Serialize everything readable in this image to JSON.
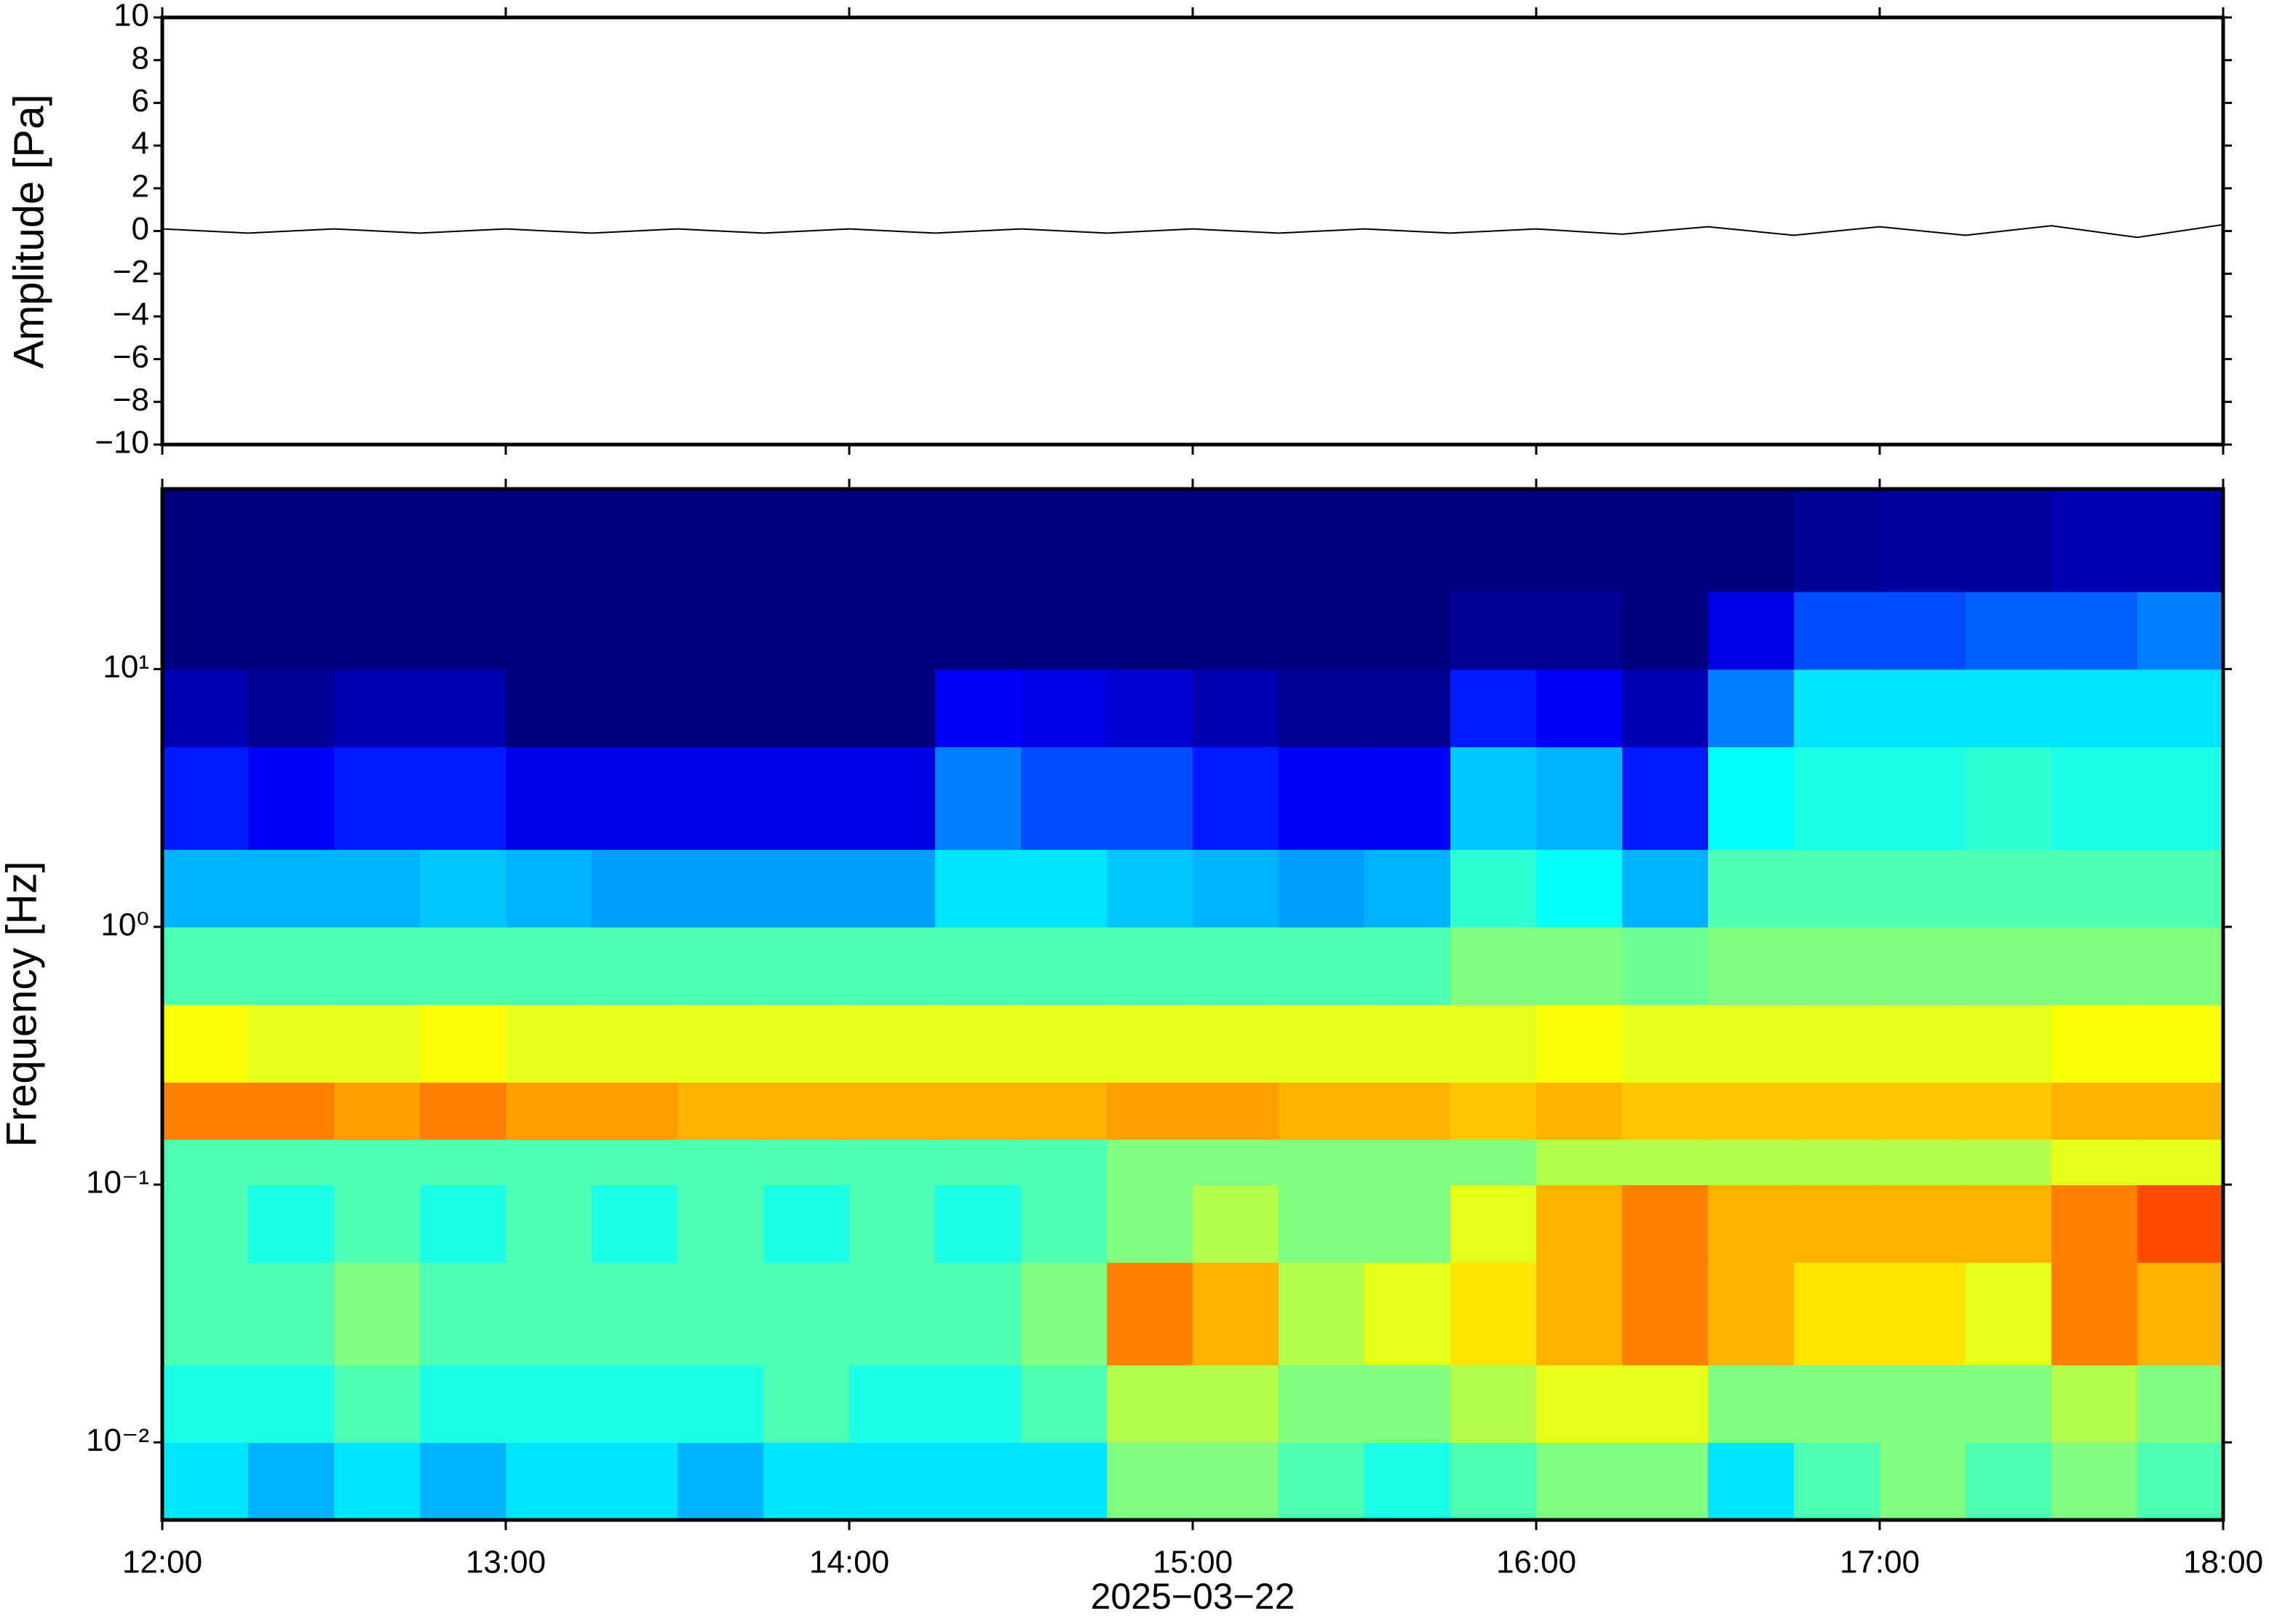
{
  "chart_data": [
    {
      "type": "line",
      "y_label": "Amplitude [Pa]",
      "color": "#000000",
      "x": [
        12,
        12.25,
        12.5,
        12.75,
        13,
        13.25,
        13.5,
        13.75,
        14,
        14.25,
        14.5,
        14.75,
        15,
        15.25,
        15.5,
        15.75,
        16,
        16.25,
        16.5,
        16.75,
        17,
        17.25,
        17.5,
        17.75,
        18
      ],
      "values": [
        0.1,
        -0.1,
        0.1,
        -0.1,
        0.1,
        -0.1,
        0.1,
        -0.1,
        0.1,
        -0.1,
        0.1,
        -0.1,
        0.1,
        -0.1,
        0.1,
        -0.1,
        0.1,
        -0.15,
        0.2,
        -0.2,
        0.2,
        -0.2,
        0.25,
        -0.3,
        0.3
      ],
      "xlim": [
        12,
        18
      ],
      "ylim": [
        -10,
        10
      ],
      "yticks": [
        {
          "value": -10,
          "label": "−10"
        },
        {
          "value": -8,
          "label": "−8"
        },
        {
          "value": -6,
          "label": "−6"
        },
        {
          "value": -4,
          "label": "−4"
        },
        {
          "value": -2,
          "label": "−2"
        },
        0,
        2,
        4,
        6,
        8,
        10
      ]
    },
    {
      "type": "heatmap",
      "y_label": "Frequency [Hz]",
      "x_label": "2025−03−22",
      "colormap": "jet",
      "log_y": true,
      "time_bins": [
        12,
        12.25,
        12.5,
        12.75,
        13,
        13.25,
        13.5,
        13.75,
        14,
        14.25,
        14.5,
        14.75,
        15,
        15.25,
        15.5,
        15.75,
        16,
        16.25,
        16.5,
        16.75,
        17,
        17.25,
        17.5,
        17.75,
        18
      ],
      "freq_bins": [
        0.005,
        0.01,
        0.02,
        0.05,
        0.1,
        0.15,
        0.25,
        0.5,
        1,
        2,
        5,
        10,
        20,
        50
      ],
      "z": [
        [
          0.35,
          0.3,
          0.35,
          0.3,
          0.35,
          0.35,
          0.3,
          0.35,
          0.35,
          0.35,
          0.35,
          0.5,
          0.5,
          0.45,
          0.4,
          0.45,
          0.5,
          0.5,
          0.35,
          0.45,
          0.5,
          0.45,
          0.5,
          0.45
        ],
        [
          0.4,
          0.4,
          0.45,
          0.4,
          0.4,
          0.4,
          0.4,
          0.45,
          0.4,
          0.4,
          0.45,
          0.55,
          0.55,
          0.5,
          0.5,
          0.55,
          0.6,
          0.6,
          0.5,
          0.5,
          0.5,
          0.5,
          0.55,
          0.5
        ],
        [
          0.45,
          0.45,
          0.5,
          0.45,
          0.45,
          0.45,
          0.45,
          0.45,
          0.45,
          0.45,
          0.5,
          0.75,
          0.7,
          0.55,
          0.6,
          0.65,
          0.7,
          0.75,
          0.7,
          0.65,
          0.65,
          0.6,
          0.75,
          0.7
        ],
        [
          0.45,
          0.4,
          0.45,
          0.4,
          0.45,
          0.4,
          0.45,
          0.4,
          0.45,
          0.4,
          0.45,
          0.5,
          0.55,
          0.5,
          0.5,
          0.6,
          0.7,
          0.75,
          0.7,
          0.7,
          0.7,
          0.7,
          0.75,
          0.8
        ],
        [
          0.45,
          0.45,
          0.45,
          0.45,
          0.45,
          0.45,
          0.45,
          0.45,
          0.45,
          0.45,
          0.45,
          0.5,
          0.5,
          0.5,
          0.5,
          0.5,
          0.55,
          0.55,
          0.55,
          0.55,
          0.55,
          0.55,
          0.6,
          0.6
        ],
        [
          0.75,
          0.75,
          0.72,
          0.75,
          0.72,
          0.72,
          0.7,
          0.7,
          0.7,
          0.7,
          0.7,
          0.72,
          0.72,
          0.7,
          0.7,
          0.68,
          0.7,
          0.68,
          0.68,
          0.68,
          0.68,
          0.68,
          0.7,
          0.7
        ],
        [
          0.62,
          0.6,
          0.6,
          0.62,
          0.6,
          0.6,
          0.6,
          0.6,
          0.6,
          0.6,
          0.6,
          0.6,
          0.6,
          0.6,
          0.6,
          0.6,
          0.62,
          0.6,
          0.6,
          0.6,
          0.6,
          0.6,
          0.62,
          0.62
        ],
        [
          0.45,
          0.45,
          0.45,
          0.45,
          0.45,
          0.45,
          0.45,
          0.45,
          0.45,
          0.45,
          0.45,
          0.45,
          0.45,
          0.45,
          0.45,
          0.5,
          0.5,
          0.48,
          0.5,
          0.5,
          0.5,
          0.5,
          0.5,
          0.5
        ],
        [
          0.3,
          0.3,
          0.3,
          0.32,
          0.3,
          0.28,
          0.28,
          0.28,
          0.28,
          0.35,
          0.35,
          0.32,
          0.3,
          0.28,
          0.3,
          0.42,
          0.38,
          0.3,
          0.45,
          0.45,
          0.45,
          0.45,
          0.45,
          0.45
        ],
        [
          0.15,
          0.12,
          0.15,
          0.15,
          0.1,
          0.1,
          0.1,
          0.1,
          0.1,
          0.25,
          0.2,
          0.2,
          0.15,
          0.12,
          0.12,
          0.32,
          0.3,
          0.15,
          0.38,
          0.4,
          0.4,
          0.42,
          0.4,
          0.4
        ],
        [
          0.05,
          0.02,
          0.05,
          0.05,
          0,
          0,
          0,
          0,
          0,
          0.12,
          0.1,
          0.08,
          0.05,
          0.02,
          0.02,
          0.15,
          0.12,
          0.05,
          0.25,
          0.35,
          0.35,
          0.35,
          0.35,
          0.35
        ],
        [
          0,
          0,
          0,
          0,
          0,
          0,
          0,
          0,
          0,
          0,
          0,
          0,
          0,
          0,
          0,
          0.02,
          0.02,
          0,
          0.1,
          0.2,
          0.2,
          0.22,
          0.22,
          0.25
        ],
        [
          0,
          0,
          0,
          0,
          0,
          0,
          0,
          0,
          0,
          0,
          0,
          0,
          0,
          0,
          0,
          0,
          0,
          0,
          0,
          0.02,
          0.03,
          0.03,
          0.05,
          0.05
        ]
      ],
      "xlim": [
        12,
        18
      ],
      "xticks": [
        {
          "value": 12,
          "label": "12:00"
        },
        {
          "value": 13,
          "label": "13:00"
        },
        {
          "value": 14,
          "label": "14:00"
        },
        {
          "value": 15,
          "label": "15:00"
        },
        {
          "value": 16,
          "label": "16:00"
        },
        {
          "value": 17,
          "label": "17:00"
        },
        {
          "value": 18,
          "label": "18:00"
        }
      ],
      "ylim": [
        0.005,
        50
      ],
      "yticks": [
        {
          "value": 0.01,
          "label": "10⁻²"
        },
        {
          "value": 0.1,
          "label": "10⁻¹"
        },
        {
          "value": 1,
          "label": "10⁰"
        },
        {
          "value": 10,
          "label": "10¹"
        }
      ]
    }
  ]
}
